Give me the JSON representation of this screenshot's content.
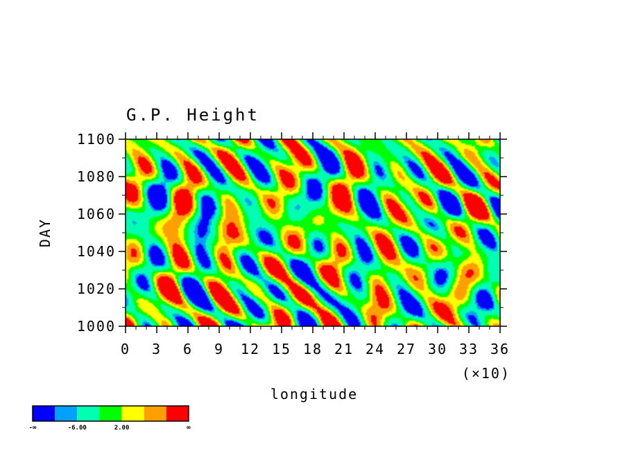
{
  "chart_data": {
    "type": "heatmap",
    "title": "G.P. Height",
    "xlabel": "longitude",
    "ylabel": "DAY",
    "x_multiplier_label": "(×10)",
    "xlim": [
      0,
      36
    ],
    "ylim": [
      1000,
      1100
    ],
    "x_ticks": [
      "0",
      "3",
      "6",
      "9",
      "12",
      "15",
      "18",
      "21",
      "24",
      "27",
      "30",
      "33",
      "36"
    ],
    "y_ticks": [
      "1000",
      "1020",
      "1040",
      "1060",
      "1080",
      "1100"
    ],
    "colorbar": {
      "colors": [
        "#0000ff",
        "#00a0ff",
        "#00ffb0",
        "#00ff00",
        "#ffff00",
        "#ffa000",
        "#ff0000"
      ],
      "labels": [
        "-∞",
        "-6.00",
        "2.00",
        "∞"
      ]
    }
  }
}
